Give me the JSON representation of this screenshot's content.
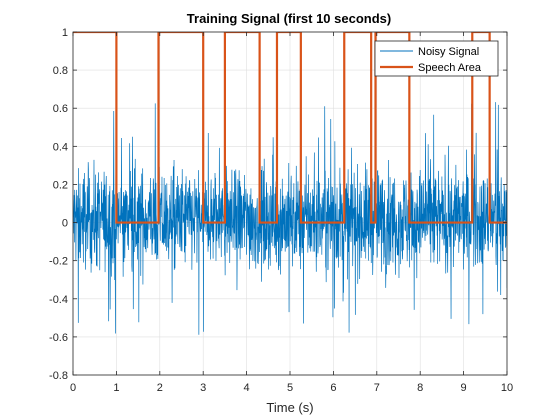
{
  "chart_data": {
    "type": "line",
    "title": "Training Signal (first 10 seconds)",
    "xlabel": "Time (s)",
    "ylabel": "",
    "xlim": [
      0,
      10
    ],
    "ylim": [
      -0.8,
      1
    ],
    "xticks": [
      "0",
      "1",
      "2",
      "3",
      "4",
      "5",
      "6",
      "7",
      "8",
      "9",
      "10"
    ],
    "yticks": [
      "-0.8",
      "-0.6",
      "-0.4",
      "-0.2",
      "0",
      "0.2",
      "0.4",
      "0.6",
      "0.8",
      "1"
    ],
    "grid": true,
    "legend_position": "top-right",
    "series": [
      {
        "name": "Noisy Signal",
        "color": "#0072BD",
        "kind": "noise",
        "typical_range": [
          -0.22,
          0.25
        ],
        "min": -0.76,
        "max": 0.64
      },
      {
        "name": "Speech Area",
        "color": "#D95319",
        "kind": "step",
        "x": [
          0,
          1.0,
          1.0,
          1.97,
          1.97,
          3.0,
          3.0,
          3.5,
          3.5,
          4.3,
          4.3,
          4.7,
          4.7,
          5.25,
          5.25,
          6.25,
          6.25,
          6.87,
          6.87,
          6.97,
          6.97,
          7.75,
          7.75,
          9.2,
          9.2,
          9.6,
          9.6,
          10
        ],
        "y": [
          1,
          1,
          0,
          0,
          1,
          1,
          0,
          0,
          1,
          1,
          0,
          0,
          1,
          1,
          0,
          0,
          1,
          1,
          0,
          0,
          1,
          1,
          0,
          0,
          1,
          1,
          0,
          0
        ]
      }
    ]
  }
}
